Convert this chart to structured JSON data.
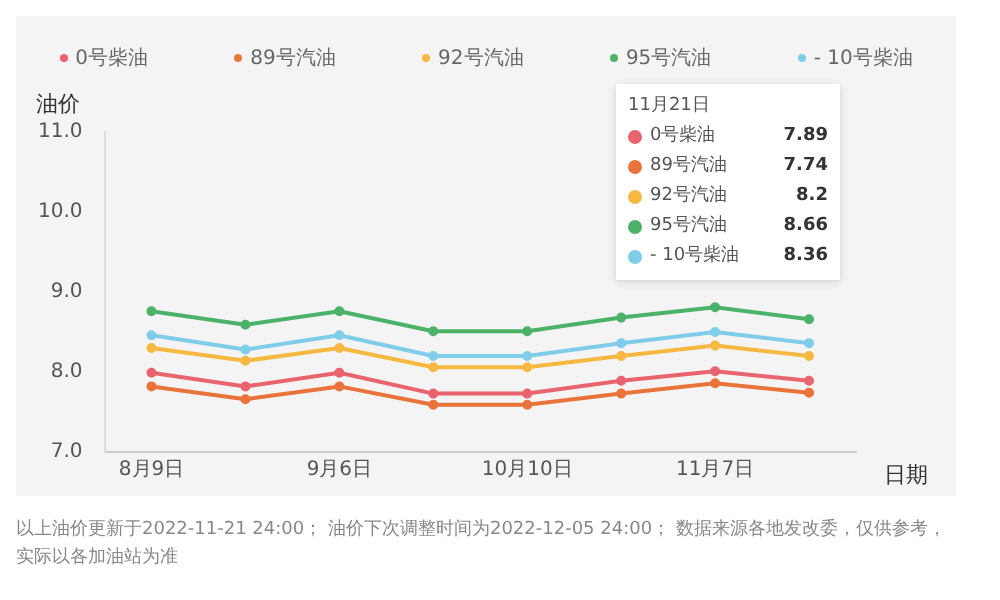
{
  "chart_data": {
    "type": "line",
    "ylabel": "油价",
    "xlabel": "日期",
    "categories": [
      "8月9日",
      null,
      "9月6日",
      null,
      "10月10日",
      null,
      "11月7日",
      null
    ],
    "series": [
      {
        "name": "0号柴油",
        "color": "#e8646e",
        "values": [
          7.99,
          7.82,
          7.99,
          7.73,
          7.73,
          7.89,
          8.01,
          7.89
        ]
      },
      {
        "name": "89号汽油",
        "color": "#e8743b",
        "values": [
          7.82,
          7.66,
          7.82,
          7.59,
          7.59,
          7.73,
          7.86,
          7.74
        ]
      },
      {
        "name": "92号汽油",
        "color": "#f5b942",
        "values": [
          8.3,
          8.14,
          8.3,
          8.06,
          8.06,
          8.2,
          8.33,
          8.2
        ]
      },
      {
        "name": "95号汽油",
        "color": "#4cb26a",
        "values": [
          8.76,
          8.59,
          8.76,
          8.51,
          8.51,
          8.68,
          8.81,
          8.66
        ]
      },
      {
        "name": "- 10号柴油",
        "color": "#7fcde8",
        "values": [
          8.46,
          8.28,
          8.46,
          8.2,
          8.2,
          8.36,
          8.5,
          8.36
        ]
      }
    ],
    "ylim": [
      7,
      11
    ],
    "yticks": [
      {
        "value": 7,
        "label": "7.0"
      },
      {
        "value": 8,
        "label": "8.0"
      },
      {
        "value": 9,
        "label": "9.0"
      },
      {
        "value": 10,
        "label": "10.0"
      },
      {
        "value": 11,
        "label": "11.0"
      }
    ],
    "grid": false,
    "legend": "top",
    "marker": "circle",
    "line_style": "solid",
    "annotations": [
      "11月21日",
      "7.89",
      "7.74",
      "8.2",
      "8.66",
      "8.36",
      "以上油价更新于2022-11-21 24:00； 油价下次调整时间为2022-12-05 24:00； 数据来源各地发改委，仅供参考，实际以各加油站为准"
    ]
  }
}
